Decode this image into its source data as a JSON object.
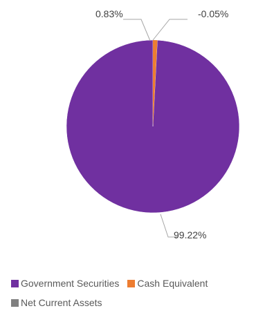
{
  "chart_data": {
    "type": "pie",
    "series": [
      {
        "name": "",
        "slices": [
          {
            "label": "Government Securities",
            "value": 99.22,
            "display": "99.22%",
            "color": "#7030a0"
          },
          {
            "label": "Cash Equivalent",
            "value": 0.83,
            "display": "0.83%",
            "color": "#ed7d31"
          },
          {
            "label": "Net Current Assets",
            "value": -0.05,
            "display": "-0.05%",
            "color": "#808080"
          }
        ]
      }
    ],
    "legend_position": "bottom",
    "data_labels": true
  }
}
